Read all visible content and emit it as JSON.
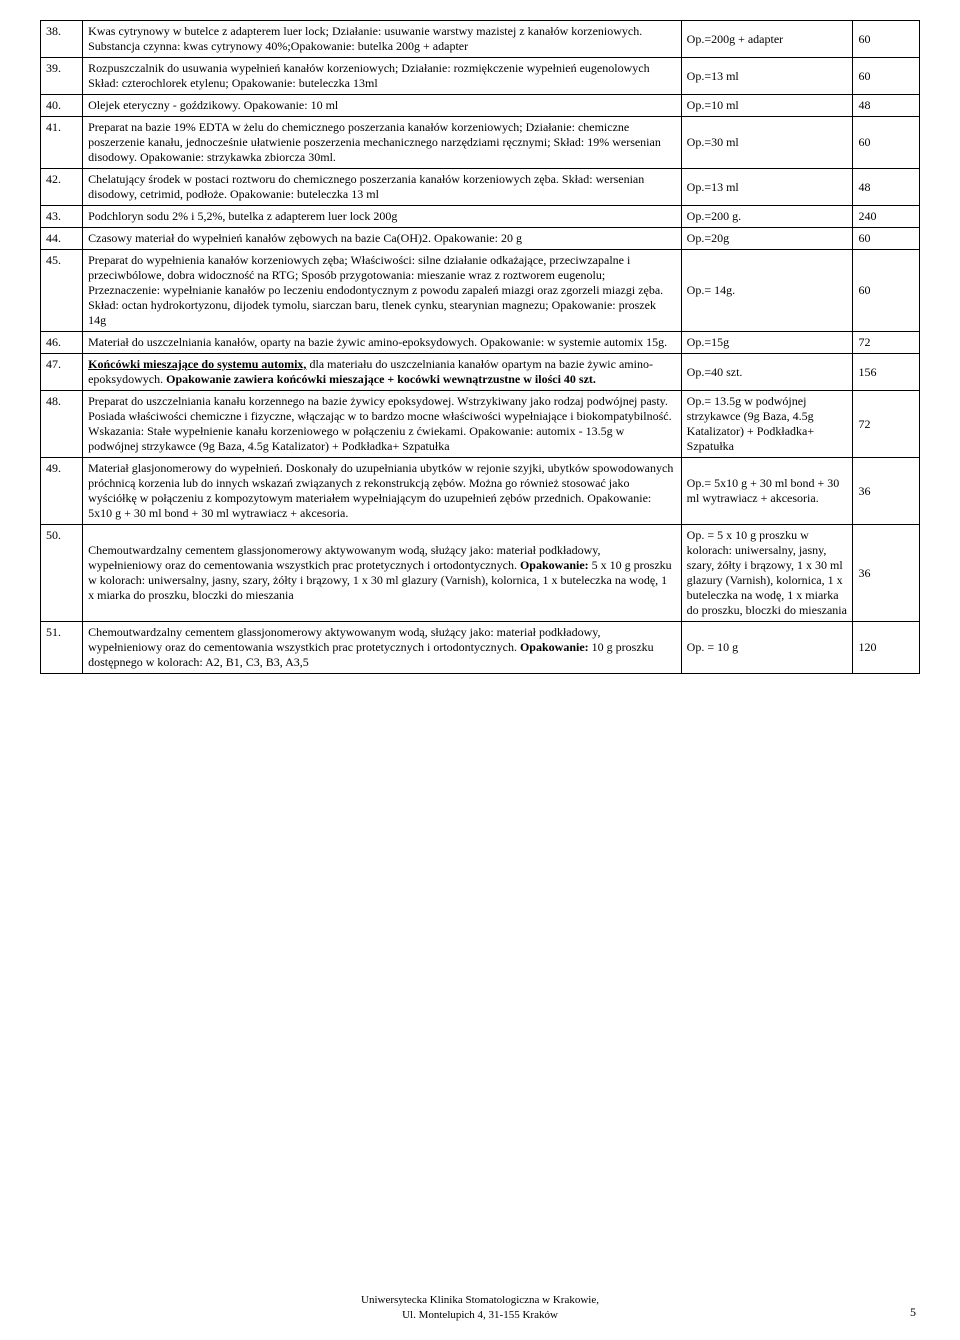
{
  "table": {
    "rows": [
      {
        "n": "38.",
        "desc": "Kwas cytrynowy w butelce z adapterem luer lock; Działanie: usuwanie warstwy mazistej z kanałów korzeniowych. Substancja czynna: kwas cytrynowy 40%;Opakowanie: butelka 200g + adapter",
        "pack": "Op.=200g + adapter",
        "qty": "60"
      },
      {
        "n": "39.",
        "desc": "Rozpuszczalnik do usuwania wypełnień kanałów korzeniowych; Działanie: rozmiękczenie wypełnień eugenolowych\nSkład: czterochlorek etylenu; Opakowanie: buteleczka 13ml",
        "pack": "Op.=13 ml",
        "qty": "60"
      },
      {
        "n": "40.",
        "desc": "Olejek eteryczny - goździkowy. Opakowanie: 10 ml",
        "pack": "Op.=10 ml",
        "qty": "48"
      },
      {
        "n": "41.",
        "desc": "Preparat na bazie 19% EDTA w żelu do chemicznego poszerzania kanałów korzeniowych; Działanie: chemiczne poszerzenie kanału, jednocześnie ułatwienie poszerzenia mechanicznego narzędziami ręcznymi; Skład: 19% wersenian disodowy. Opakowanie: strzykawka zbiorcza 30ml.",
        "pack": "Op.=30 ml",
        "qty": "60"
      },
      {
        "n": "42.",
        "desc": "Chelatujący środek  w postaci roztworu do chemicznego poszerzania kanałów korzeniowych zęba. Skład: wersenian disodowy, cetrimid, podłoże. Opakowanie: buteleczka 13 ml",
        "pack": "Op.=13 ml",
        "qty": "48"
      },
      {
        "n": "43.",
        "desc": "Podchloryn sodu 2% i 5,2%, butelka z adapterem luer lock 200g",
        "pack": "Op.=200 g.",
        "qty": "240"
      },
      {
        "n": "44.",
        "desc": "Czasowy materiał do wypełnień kanałów zębowych na bazie Ca(OH)2. Opakowanie: 20 g",
        "pack": "Op.=20g",
        "qty": "60"
      },
      {
        "n": "45.",
        "desc": "Preparat do wypełnienia kanałów korzeniowych zęba; Właściwości: silne działanie odkażające, przeciwzapalne i przeciwbólowe, dobra widoczność na RTG; Sposób przygotowania: mieszanie wraz z roztworem eugenolu; Przeznaczenie: wypełnianie kanałów po leczeniu endodontycznym z powodu zapaleń miazgi oraz zgorzeli miazgi zęba. Skład: octan hydrokortyzonu, dijodek tymolu, siarczan baru, tlenek cynku, stearynian magnezu; Opakowanie: proszek 14g",
        "pack": "Op.= 14g.",
        "qty": "60"
      },
      {
        "n": "46.",
        "desc": "Materiał do uszczelniania kanałów, oparty na bazie żywic amino-epoksydowych. Opakowanie:  w systemie  automix 15g.",
        "pack": "Op.=15g",
        "qty": "72"
      },
      {
        "n": "47.",
        "desc": "<span class=\"bold underline\">Końcówki mieszające do systemu automix,</span>  dla materiału do uszczelniania kanałów opartym na bazie żywic amino-epoksydowych. <span class=\"bold\">Opakowanie zawiera końcówki mieszające + kocówki wewnątrzustne w ilości 40 szt.</span>",
        "pack": "Op.=40 szt.",
        "qty": "156",
        "html": true
      },
      {
        "n": "48.",
        "desc": "Preparat do uszczelniania kanału korzennego na bazie żywicy epoksydowej. Wstrzykiwany jako rodzaj podwójnej pasty. Posiada właściwości chemiczne i fizyczne, włączając w to bardzo mocne właściwości wypełniające i biokompatybilność. Wskazania: Stałe wypełnienie kanału korzeniowego w połączeniu z ćwiekami. Opakowanie: automix - 13.5g w podwójnej strzykawce (9g Baza, 4.5g Katalizator) + Podkładka+ Szpatułka",
        "pack": "Op.= 13.5g w podwójnej strzykawce (9g Baza, 4.5g Katalizator) + Podkładka+ Szpatułka",
        "qty": "72"
      },
      {
        "n": "49.",
        "desc": "Materiał glasjonomerowy do wypełnień. Doskonały do uzupełniania ubytków w rejonie szyjki, ubytków spowodowanych próchnicą korzenia lub do innych wskazań związanych z rekonstrukcją zębów. Można go również stosować jako wyściółkę w połączeniu z kompozytowym materiałem wypełniającym do uzupełnień zębów przednich. Opakowanie: 5x10 g  + 30 ml bond + 30 ml wytrawiacz + akcesoria.",
        "pack": "Op.= 5x10 g  + 30 ml bond + 30 ml wytrawiacz + akcesoria.",
        "qty": "36"
      },
      {
        "n": "50.",
        "desc": "Chemoutwardzalny cementem glassjonomerowy aktywowanym wodą, służący jako: materiał podkładowy, wypełnieniowy oraz do cementowania wszystkich prac protetycznych i ortodontycznych.  <span class=\"bold\">Opakowanie:</span>  5 x 10 g proszku w kolorach: uniwersalny, jasny, szary, żółty i brązowy,  1 x 30 ml glazury (Varnish), kolornica, 1 x buteleczka na wodę, 1 x miarka do proszku, bloczki do mieszania",
        "pack": "Op. = 5 x 10 g proszku w kolorach: uniwersalny, jasny, szary, żółty i brązowy,  1 x 30 ml glazury (Varnish), kolornica, 1 x buteleczka na wodę, 1 x miarka do proszku, bloczki do mieszania",
        "qty": "36",
        "html": true
      },
      {
        "n": "51.",
        "desc": "Chemoutwardzalny cementem glassjonomerowy aktywowanym wodą, służący jako: materiał podkładowy, wypełnieniowy oraz do cementowania wszystkich prac protetycznych i ortodontycznych.  <span class=\"bold\">Opakowanie:</span> 10 g proszku dostępnego w kolorach: A2, B1, C3, B3, A3,5",
        "pack": "Op. = 10 g",
        "qty": "120",
        "html": true
      }
    ]
  },
  "footer": {
    "line1": "Uniwersytecka Klinika Stomatologiczna w Krakowie,",
    "line2": "Ul. Montelupich 4, 31-155 Kraków"
  },
  "page_number": "5"
}
